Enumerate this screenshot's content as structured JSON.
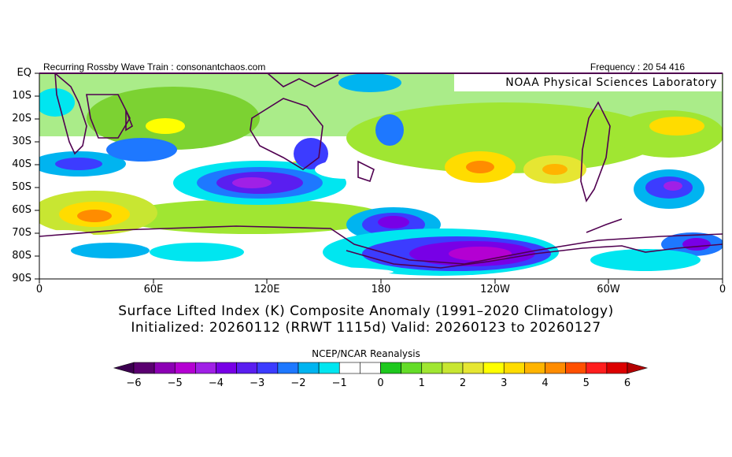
{
  "header": {
    "left_text": "Recurring Rossby Wave Train : consonantchaos.com",
    "right_text": "Frequency : 20 54 416",
    "lab_label": "NOAA Physical Sciences Laboratory"
  },
  "map": {
    "lat_labels": [
      "EQ",
      "10S",
      "20S",
      "30S",
      "40S",
      "50S",
      "60S",
      "70S",
      "80S",
      "90S"
    ],
    "lon_labels": [
      "0",
      "60E",
      "120E",
      "180",
      "120W",
      "60W",
      "0"
    ]
  },
  "titles": {
    "line1": "Surface Lifted Index (K) Composite Anomaly (1991–2020 Climatology)",
    "line2": "Initialized: 20260112 (RRWT 1115d) Valid: 20260123 to 20260127"
  },
  "colorbar": {
    "title": "NCEP/NCAR Reanalysis",
    "ticks": [
      "−6",
      "−5",
      "−4",
      "−3",
      "−2",
      "−1",
      "0",
      "1",
      "2",
      "3",
      "4",
      "5",
      "6"
    ],
    "colors": [
      "#5a0070",
      "#8c00b4",
      "#b400d2",
      "#a020e6",
      "#7800e6",
      "#5a1ef0",
      "#3c3cff",
      "#1e78ff",
      "#00b4f0",
      "#00e6f0",
      "#ffffff",
      "#ffffff",
      "#1ec81e",
      "#64dc28",
      "#a0e632",
      "#c8e632",
      "#e6e632",
      "#ffff00",
      "#ffdc00",
      "#ffb400",
      "#ff8c00",
      "#ff5000",
      "#ff1e1e",
      "#dc0000"
    ],
    "left_arrow_color": "#3c0050",
    "right_arrow_color": "#b40000"
  }
}
